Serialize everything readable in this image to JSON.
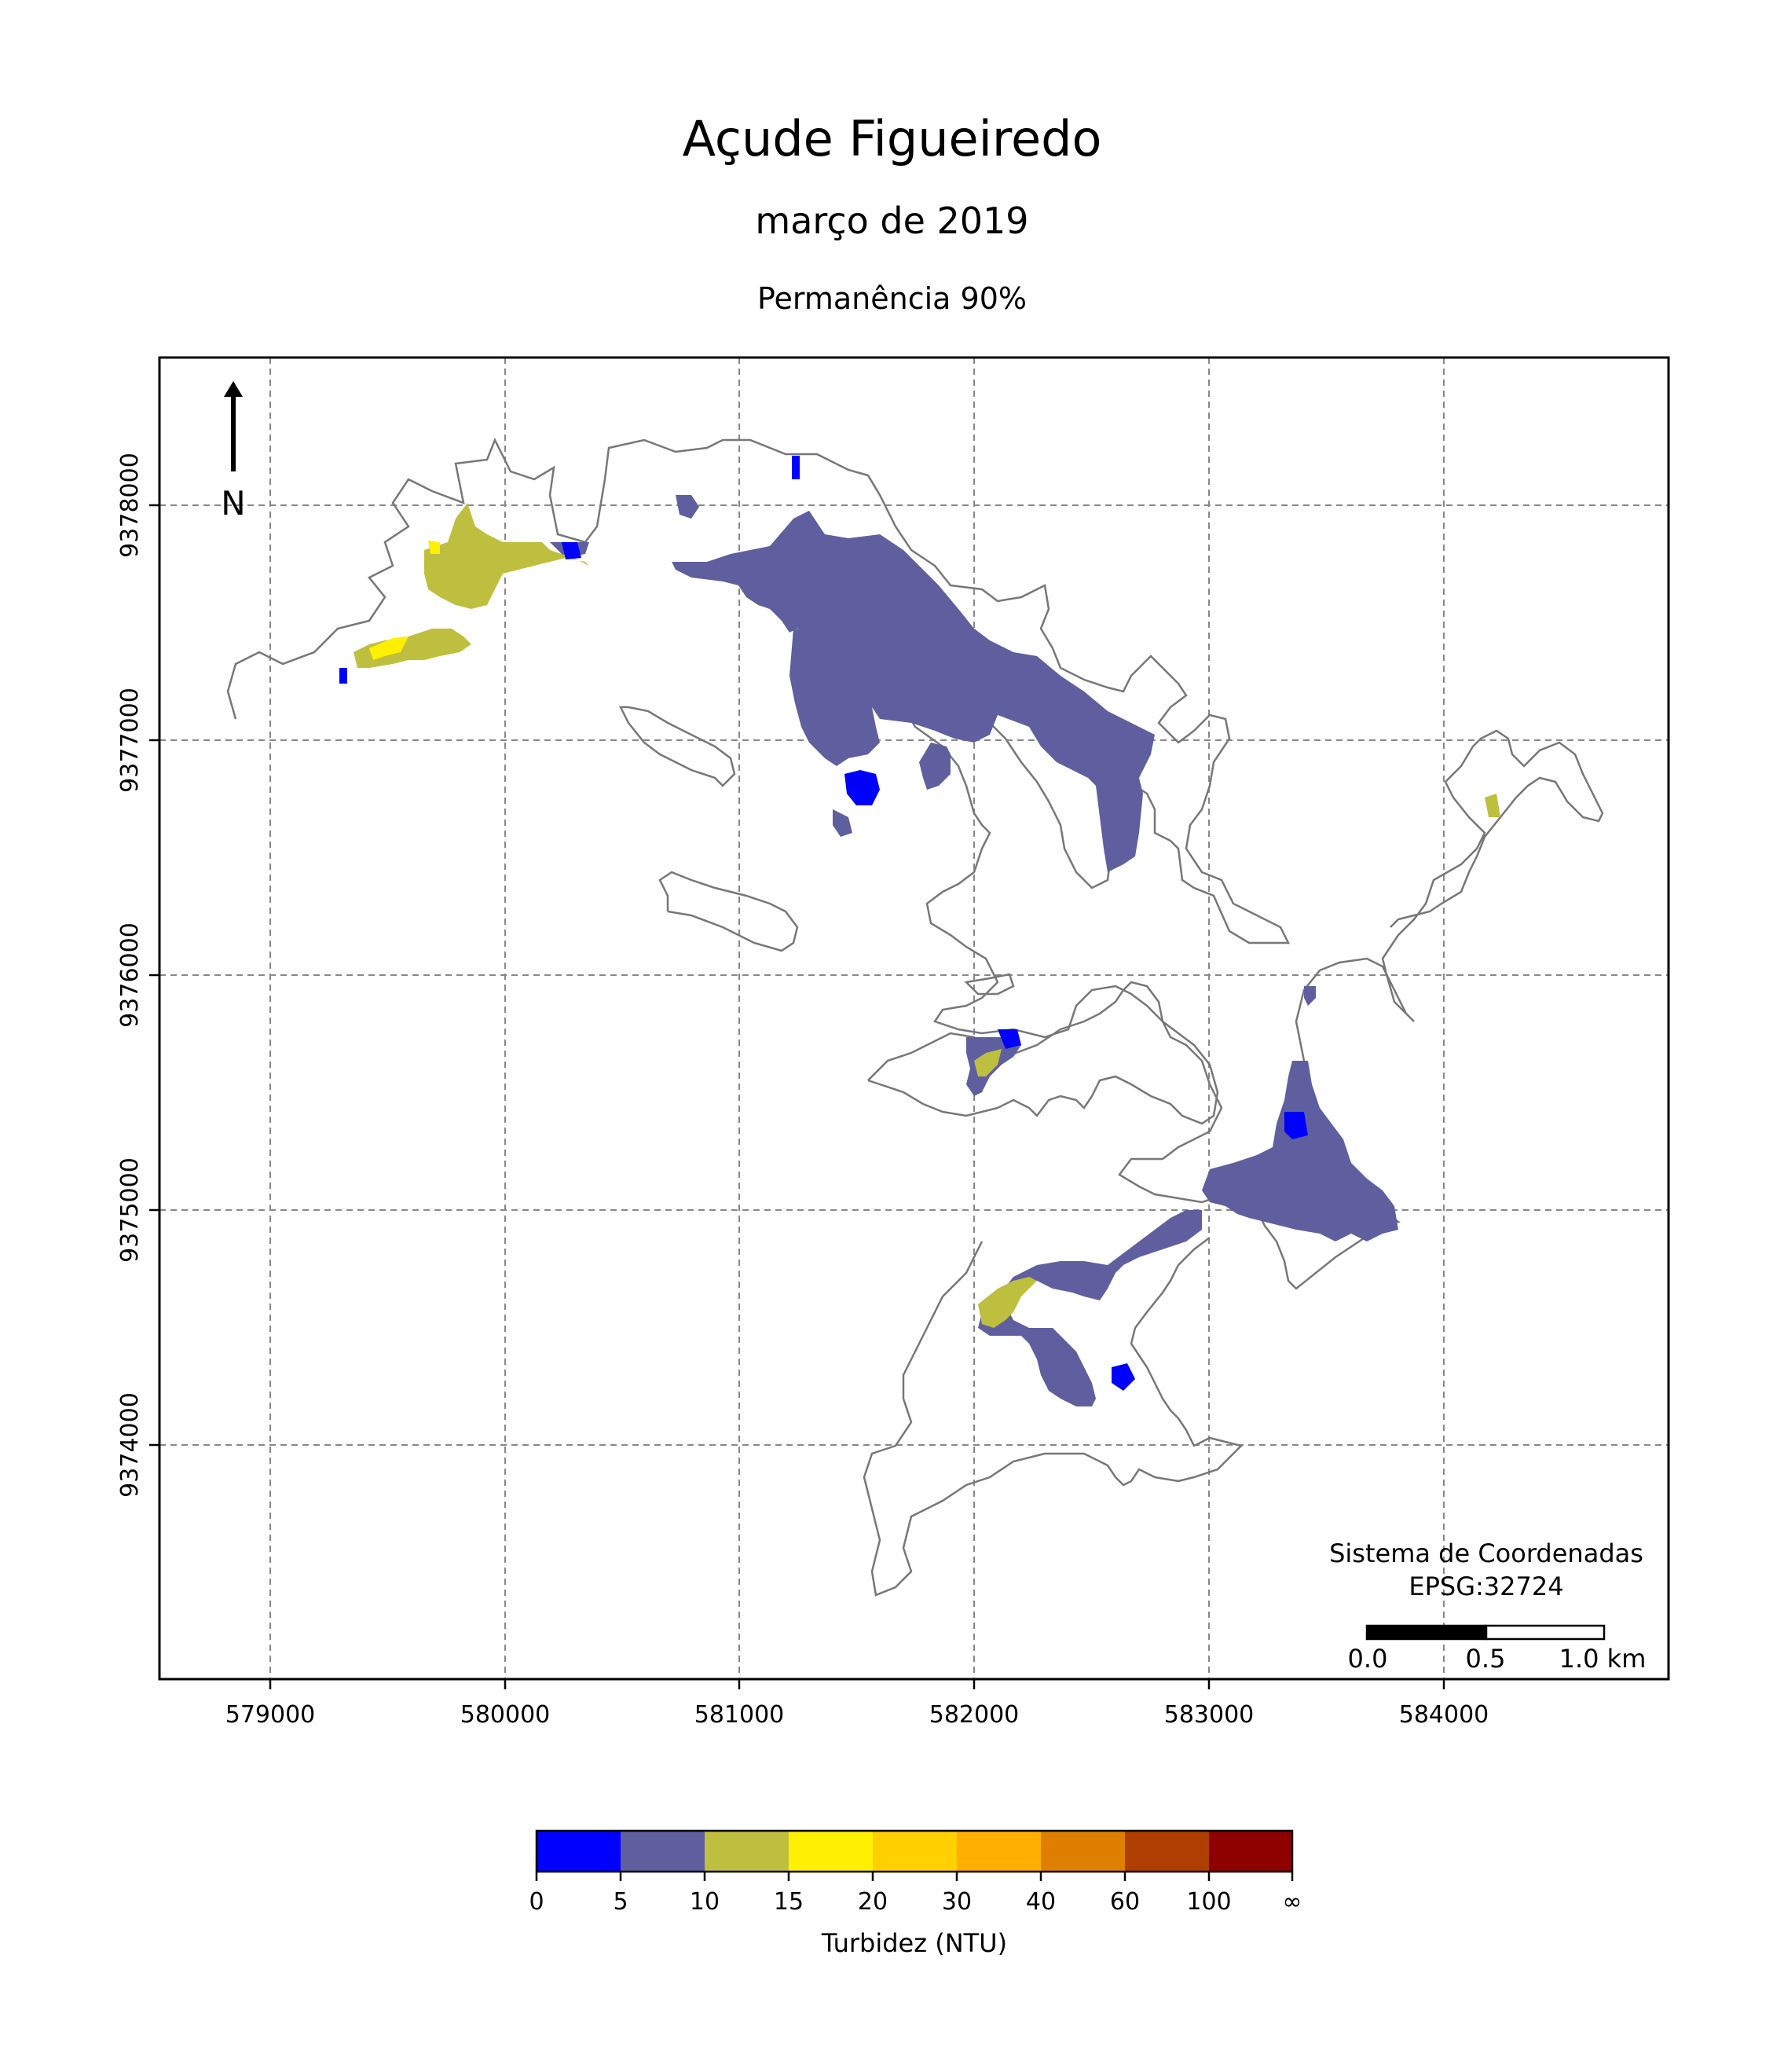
{
  "header": {
    "title": "Açude Figueiredo",
    "subtitle": "março de 2019",
    "statistic": "Permanência 90%"
  },
  "map": {
    "x_ticks": [
      "579000",
      "580000",
      "581000",
      "582000",
      "583000",
      "584000"
    ],
    "y_ticks": [
      "9378000",
      "9377000",
      "9376000",
      "9375000",
      "9374000"
    ],
    "grid": true,
    "north_arrow_label": "N",
    "crs_label": "Sistema de Coordenadas",
    "crs_code": "EPSG:32724",
    "scalebar": {
      "labels": [
        "0.0",
        "0.5",
        "1.0 km"
      ]
    }
  },
  "colorbar": {
    "label": "Turbidez (NTU)",
    "bounds": [
      "0",
      "5",
      "10",
      "15",
      "20",
      "30",
      "40",
      "60",
      "100",
      "∞"
    ],
    "colors": [
      "#0000ff",
      "#5f5f9f",
      "#bfbf3f",
      "#ffef00",
      "#ffcf00",
      "#ffaf00",
      "#df7f00",
      "#af3f00",
      "#8f0000"
    ]
  },
  "colors": {
    "outline": "#777777",
    "dominant_class": "#5f5f9f",
    "high_class": "#bfbf3f",
    "peak_class": "#ffef00",
    "low_class": "#0000ff"
  }
}
